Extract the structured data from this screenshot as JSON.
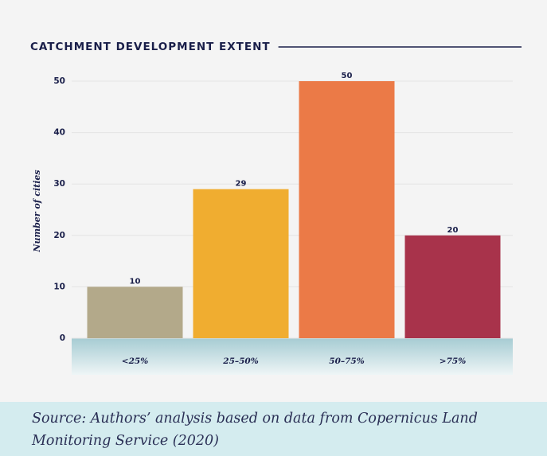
{
  "chart_data": {
    "type": "bar",
    "title": "CATCHMENT DEVELOPMENT EXTENT",
    "y_label": "Number of cities",
    "categories": [
      "<25%",
      "25–50%",
      "50–75%",
      ">75%"
    ],
    "values": [
      10,
      29,
      50,
      20
    ],
    "colors": [
      "#b3a98a",
      "#f0ad30",
      "#eb7a47",
      "#a8334b"
    ],
    "ylim": [
      0,
      50
    ],
    "yticks": [
      0,
      10,
      20,
      30,
      40,
      50
    ],
    "grid": true,
    "source": "Source: Authors’ analysis based on data from Copernicus Land Monitoring Service (2020)"
  }
}
